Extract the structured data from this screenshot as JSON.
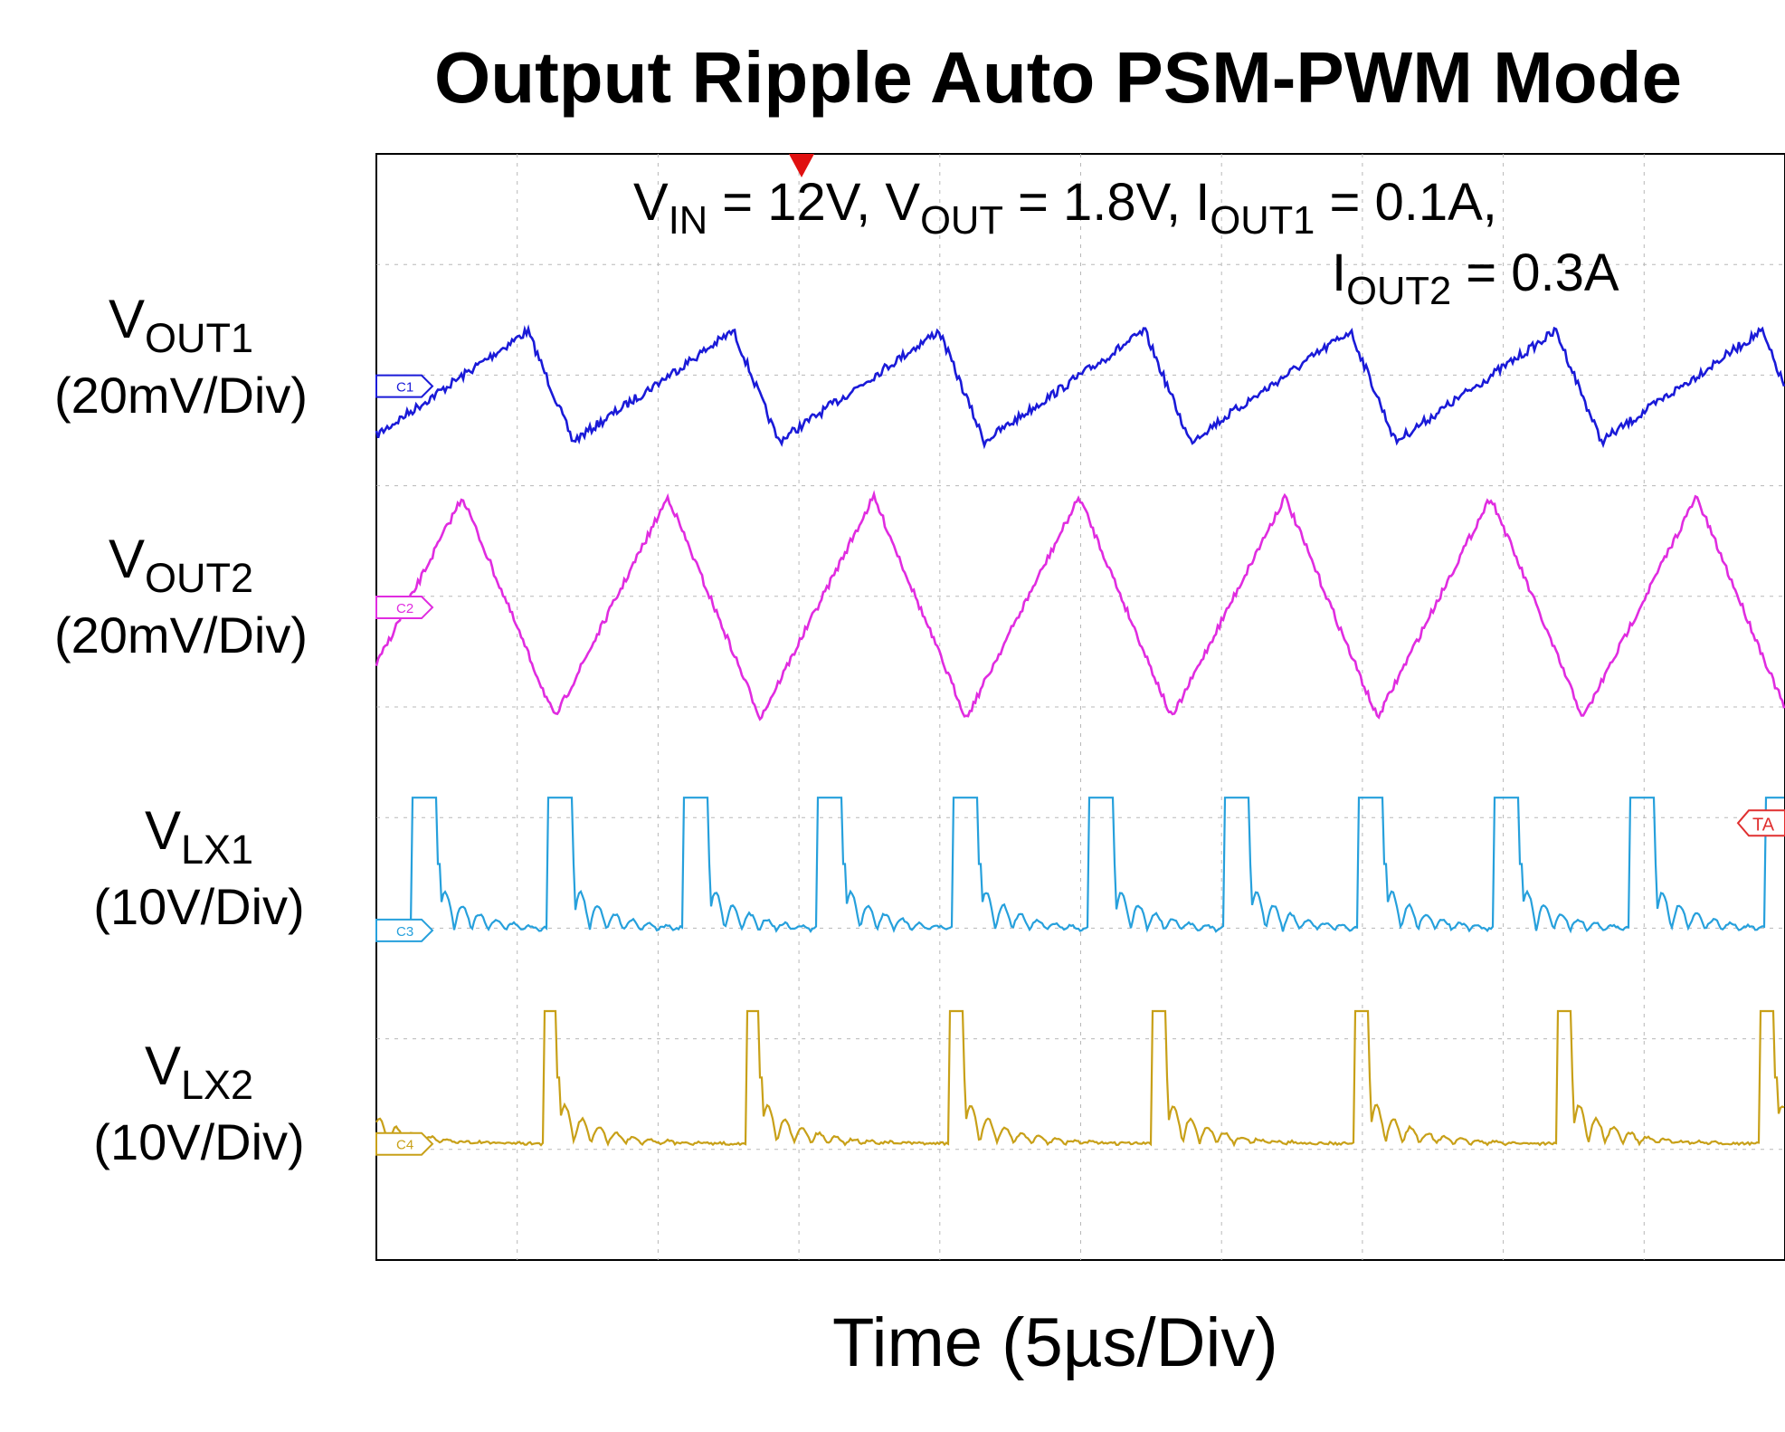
{
  "title": "Output Ripple Auto PSM-PWM Mode",
  "xlabel": "Time (5µs/Div)",
  "conditions": {
    "line1": {
      "vin_sym": "V",
      "vin_sub": "IN",
      "vin_val": " = 12V, ",
      "vout_sym": "V",
      "vout_sub": "OUT",
      "vout_val": " = 1.8V, ",
      "i1_sym": "I",
      "i1_sub": "OUT1",
      "i1_val": " = 0.1A,"
    },
    "line2": {
      "i2_sym": "I",
      "i2_sub": "OUT2",
      "i2_val": " = 0.3A"
    }
  },
  "channels": [
    {
      "sym": "V",
      "sub": "OUT1",
      "scale": "(20mV/Div)",
      "marker": "C1",
      "color": "#1a1ad8"
    },
    {
      "sym": "V",
      "sub": "OUT2",
      "scale": "(20mV/Div)",
      "marker": "C2",
      "color": "#e02ce0"
    },
    {
      "sym": "V",
      "sub": "LX1",
      "scale": "(10V/Div)",
      "marker": "C3",
      "color": "#26a0dc"
    },
    {
      "sym": "V",
      "sub": "LX2",
      "scale": "(10V/Div)",
      "marker": "C4",
      "color": "#c8a018"
    }
  ],
  "trigger_marker": "TA",
  "chart_data": {
    "type": "line",
    "title": "Output Ripple Auto PSM-PWM Mode",
    "xlabel": "Time (5µs/Div)",
    "ylabel": "",
    "x_divisions": 10,
    "y_divisions": 10,
    "x_unit_per_div": "5µs",
    "grid": true,
    "series": [
      {
        "name": "VOUT1",
        "scale": "20mV/Div",
        "color": "#1a1ad8",
        "description_values": {
          "ripple_mV_pp": 20,
          "period_us": 7.3
        }
      },
      {
        "name": "VOUT2",
        "scale": "20mV/Div",
        "color": "#e02ce0",
        "description_values": {
          "ripple_mV_pp": 40,
          "period_us": 7.3
        }
      },
      {
        "name": "VLX1",
        "scale": "10V/Div",
        "color": "#26a0dc",
        "description_values": {
          "amplitude_V": 12,
          "period_us": 4.8
        }
      },
      {
        "name": "VLX2",
        "scale": "10V/Div",
        "color": "#c8a018",
        "description_values": {
          "amplitude_V": 12,
          "period_us": 7.2
        }
      }
    ]
  }
}
